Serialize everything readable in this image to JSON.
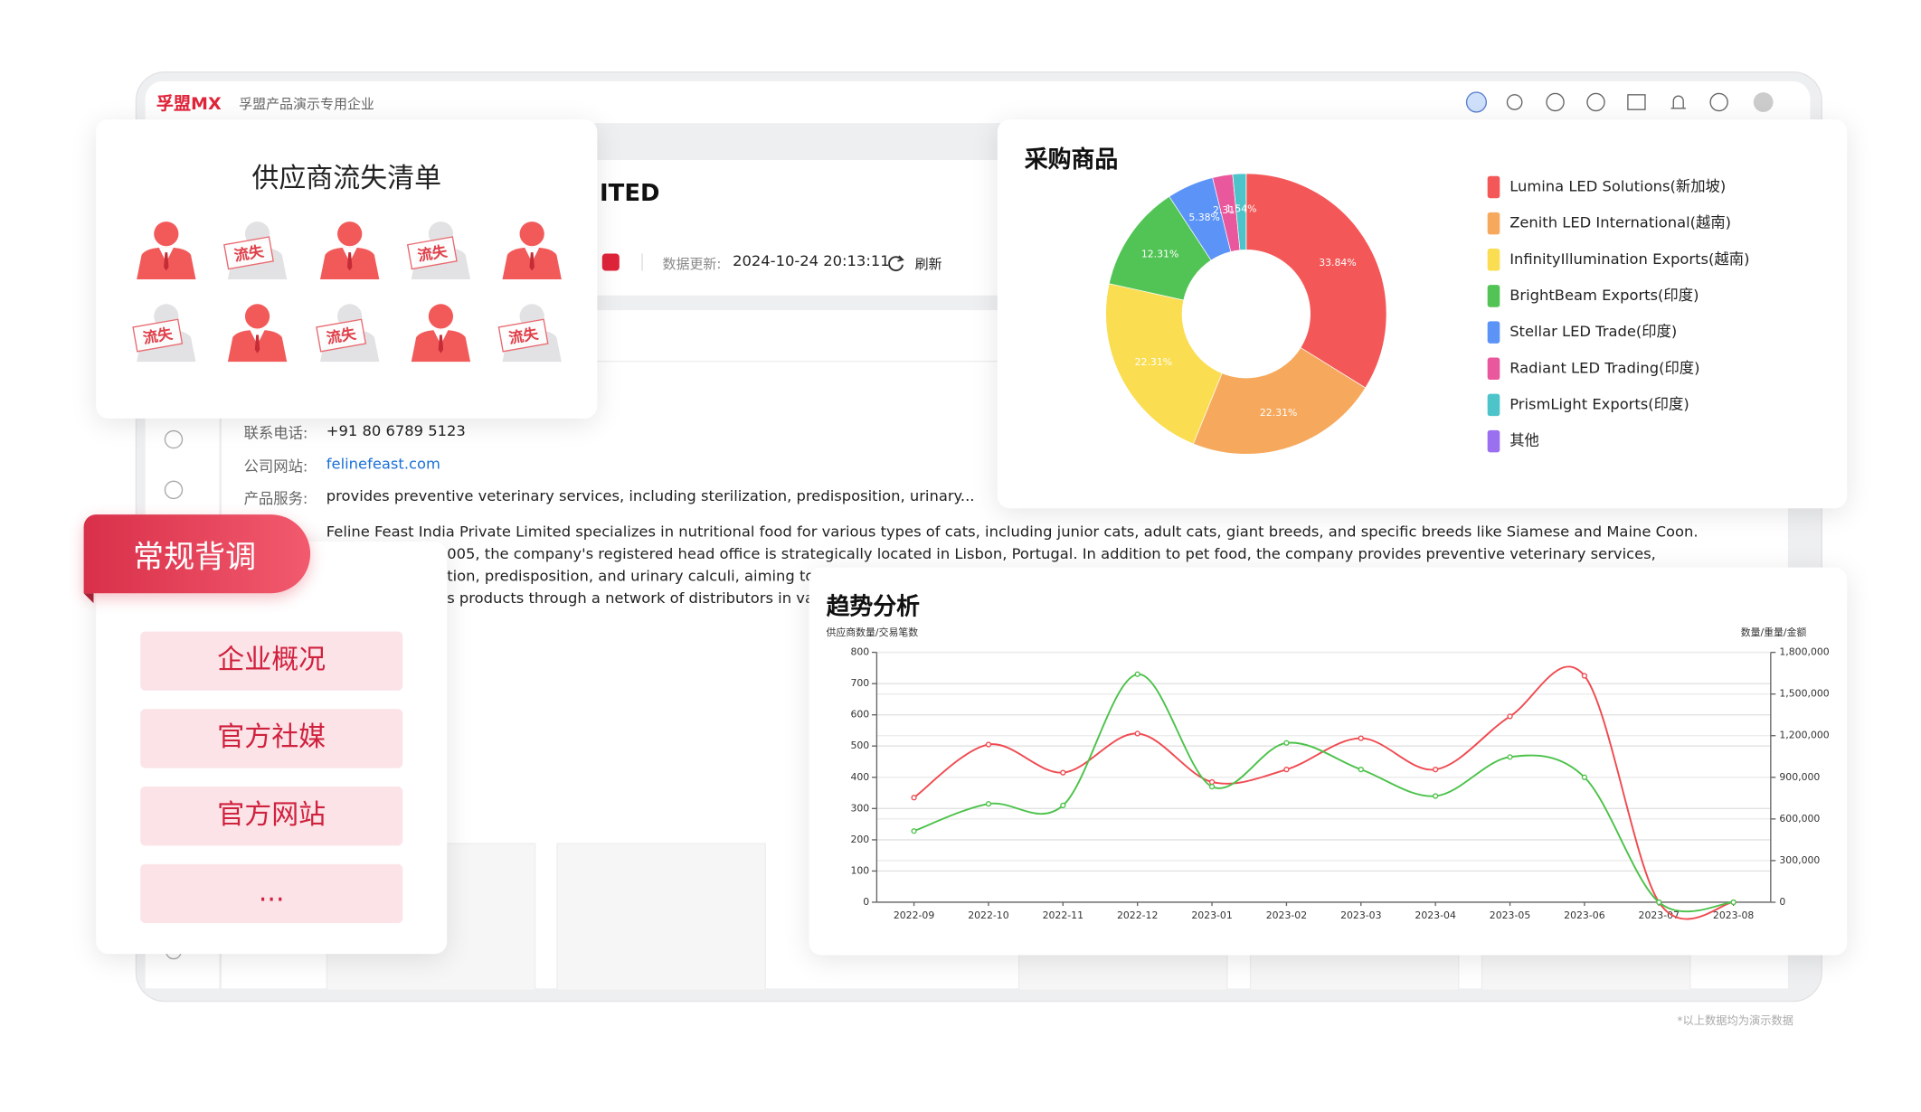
{
  "header": {
    "logo": "孚盟MX",
    "company": "孚盟产品演示专用企业"
  },
  "supplier_loss": {
    "title": "供应商流失清单",
    "lost_label": "流失",
    "lost": [
      false,
      true,
      false,
      true,
      false,
      true,
      false,
      true,
      false,
      true
    ]
  },
  "company": {
    "name_fragment": "ITED",
    "update_label": "数据更新:",
    "update_time": "2024-10-24 20:13:11",
    "refresh": "刷新",
    "fields": [
      {
        "label": "联系电话:",
        "value": "+91 80 6789 5123"
      },
      {
        "label": "公司网站:",
        "value": "felinefeast.com"
      },
      {
        "label": "产品服务:",
        "value": "provides preventive veterinary services, including sterilization, predisposition, urinary..."
      }
    ],
    "intro_lines": [
      "Feline Feast India Private Limited specializes in nutritional food for various types of cats, including junior cats, adult cats, giant breeds, and specific breeds like Siamese and Maine Coon.",
      "005, the company's registered head office is strategically located in Lisbon, Portugal. In addition to pet food, the company provides preventive veterinary services,",
      "tion, predisposition, and urinary calculi, aiming to off",
      "s products through a network of distributors in variou"
    ]
  },
  "routine": {
    "title": "常规背调",
    "items": [
      "企业概况",
      "官方社媒",
      "官方网站",
      "..."
    ]
  },
  "chart_data": [
    {
      "type": "pie",
      "title": "采购商品",
      "donut": true,
      "categories": [
        "Lumina LED Solutions(新加坡)",
        "Zenith LED International(越南)",
        "InfinityIllumination Exports(越南)",
        "BrightBeam Exports(印度)",
        "Stellar LED Trade(印度)",
        "Radiant LED Trading(印度)",
        "PrismLight Exports(印度)",
        "其他"
      ],
      "values": [
        33.84,
        22.31,
        22.31,
        12.31,
        5.38,
        2.31,
        1.54,
        0
      ],
      "value_labels": [
        "33.84%",
        "22.31%",
        "22.31%",
        "12.31%",
        "5.38%",
        "2.31%",
        "1.54%",
        null
      ],
      "colors": [
        "#f45757",
        "#f6a95c",
        "#fadd50",
        "#52c455",
        "#5b94f6",
        "#e9579c",
        "#4dc4ca",
        "#9a6ff0"
      ]
    },
    {
      "type": "line",
      "title": "趋势分析",
      "ylabel": "供应商数量/交易笔数",
      "y2label": "数量/重量/金额",
      "smooth": true,
      "grid": true,
      "categories": [
        "2022-09",
        "2022-10",
        "2022-11",
        "2022-12",
        "2023-01",
        "2023-02",
        "2023-03",
        "2023-04",
        "2023-05",
        "2023-06",
        "2023-07",
        "2023-08"
      ],
      "series": [
        {
          "color": "#ef4a50",
          "values": [
            335,
            505,
            415,
            540,
            385,
            425,
            525,
            425,
            595,
            725,
            0,
            0
          ]
        },
        {
          "color": "#4cc24a",
          "values": [
            228,
            315,
            310,
            730,
            370,
            510,
            425,
            340,
            465,
            400,
            0,
            0
          ]
        }
      ],
      "ylim": [
        0,
        800
      ],
      "yticks": [
        0,
        100,
        200,
        300,
        400,
        500,
        600,
        700,
        800
      ],
      "y2lim": [
        0,
        1800000
      ],
      "y2ticks": [
        0,
        {
          "value": 300000,
          "label": "300,000"
        },
        {
          "value": 600000,
          "label": "600,000"
        },
        {
          "value": 900000,
          "label": "900,000"
        },
        {
          "value": 1200000,
          "label": "1,200,000"
        },
        {
          "value": 1500000,
          "label": "1,500,000"
        },
        {
          "value": 1800000,
          "label": "1,800,000"
        }
      ]
    }
  ],
  "footnote": "*以上数据均为演示数据"
}
